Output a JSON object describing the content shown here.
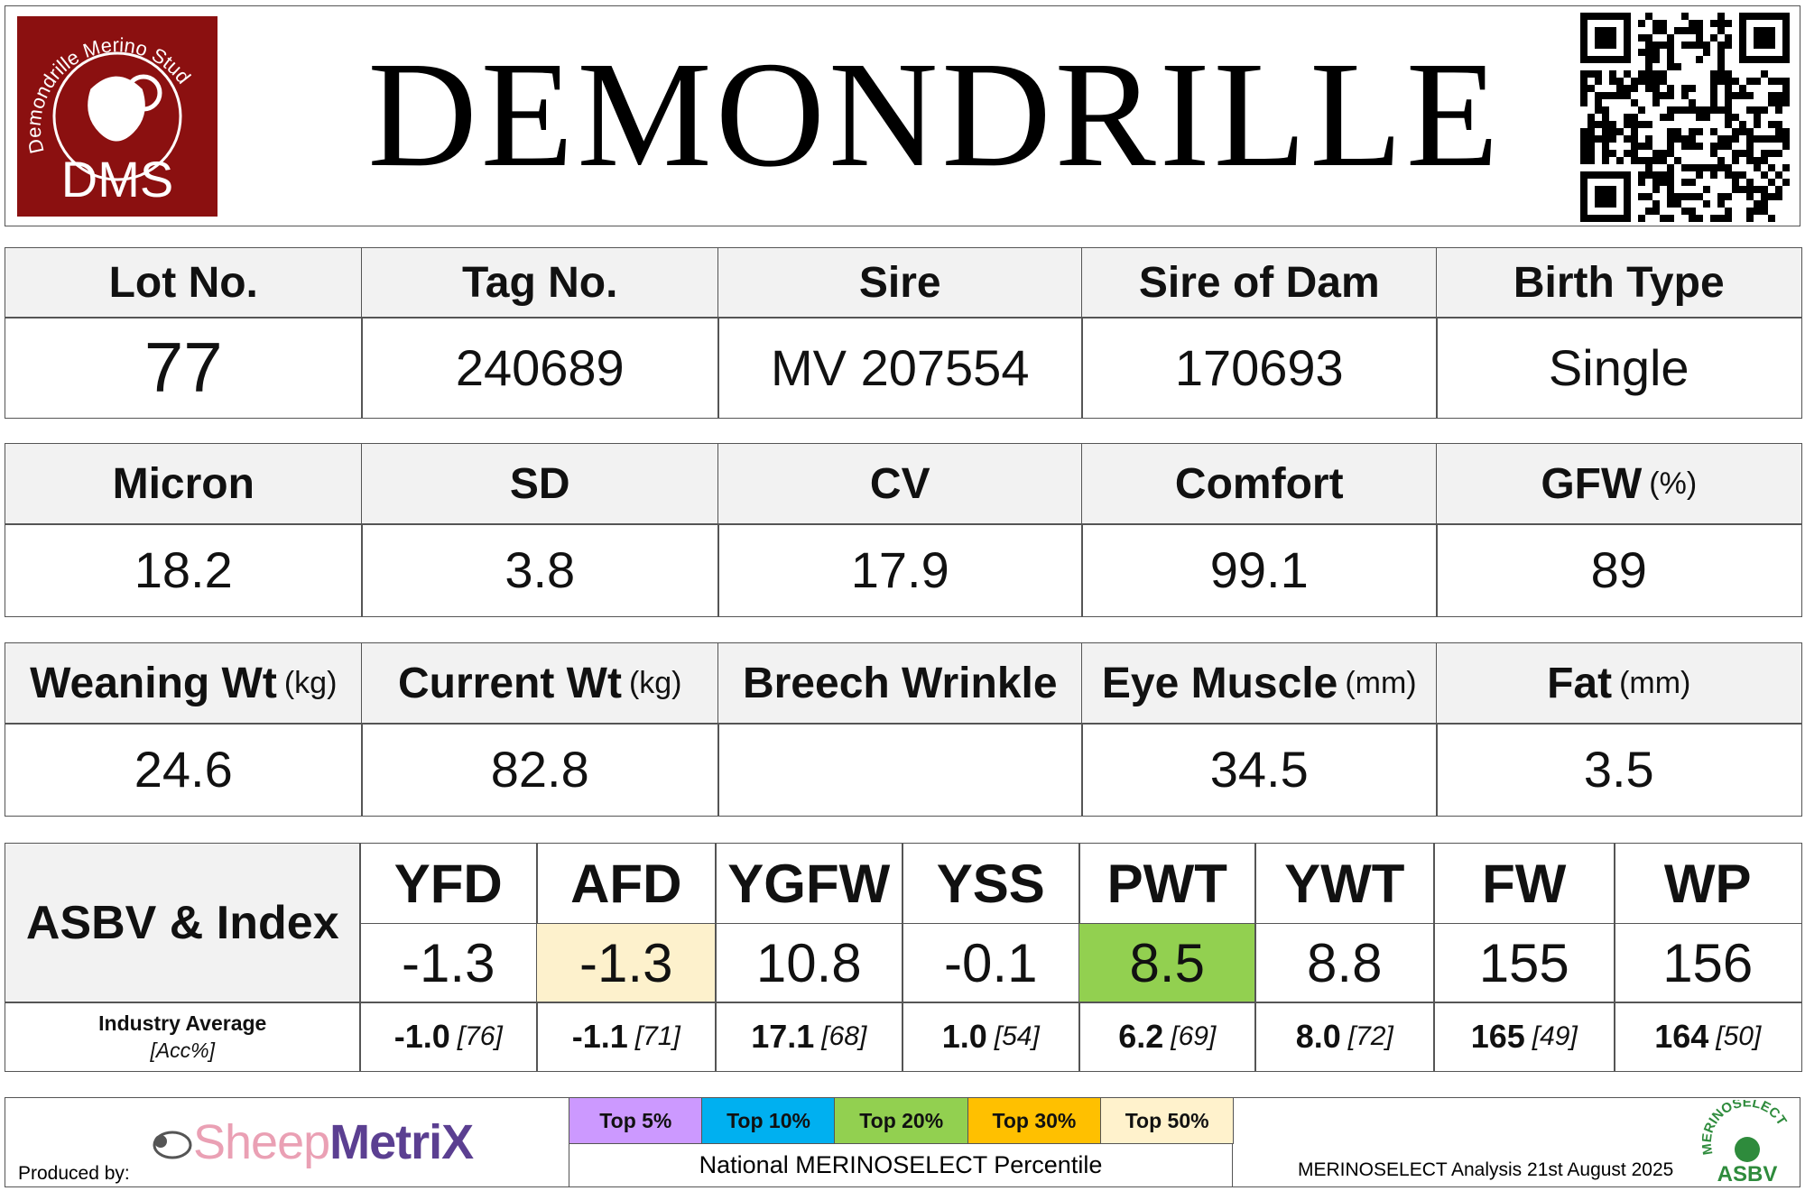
{
  "header": {
    "logo": {
      "arc_text": "Demondrille Merino Stud",
      "initials": "DMS"
    },
    "title": "DEMONDRILLE"
  },
  "info_tables": [
    {
      "columns": [
        {
          "label": "Lot No."
        },
        {
          "label": "Tag No."
        },
        {
          "label": "Sire"
        },
        {
          "label": "Sire of Dam"
        },
        {
          "label": "Birth Type"
        }
      ],
      "values": [
        "77",
        "240689",
        "MV 207554",
        "170693",
        "Single"
      ]
    },
    {
      "columns": [
        {
          "label": "Micron"
        },
        {
          "label": "SD"
        },
        {
          "label": "CV"
        },
        {
          "label": "Comfort"
        },
        {
          "label": "GFW",
          "unit": "(%)"
        }
      ],
      "values": [
        "18.2",
        "3.8",
        "17.9",
        "99.1",
        "89"
      ]
    },
    {
      "columns": [
        {
          "label": "Weaning Wt",
          "unit": "(kg)"
        },
        {
          "label": "Current Wt",
          "unit": "(kg)"
        },
        {
          "label": "Breech Wrinkle"
        },
        {
          "label": "Eye Muscle",
          "unit": "(mm)"
        },
        {
          "label": "Fat",
          "unit": "(mm)"
        }
      ],
      "values": [
        "24.6",
        "82.8",
        null,
        "34.5",
        "3.5"
      ]
    }
  ],
  "asbv": {
    "label": "ASBV & Index",
    "columns": [
      "YFD",
      "AFD",
      "YGFW",
      "YSS",
      "PWT",
      "YWT",
      "FW",
      "WP"
    ],
    "values": [
      "-1.3",
      "-1.3",
      "10.8",
      "-0.1",
      "8.5",
      "8.8",
      "155",
      "156"
    ],
    "highlights": [
      null,
      "#fdf1cc",
      null,
      null,
      "#92d050",
      null,
      null,
      null
    ],
    "average_label": "Industry Average",
    "accuracy_label": "[Acc%]",
    "averages": [
      {
        "value": "-1.0",
        "accuracy": "[76]"
      },
      {
        "value": "-1.1",
        "accuracy": "[71]"
      },
      {
        "value": "17.1",
        "accuracy": "[68]"
      },
      {
        "value": "1.0",
        "accuracy": "[54]"
      },
      {
        "value": "6.2",
        "accuracy": "[69]"
      },
      {
        "value": "8.0",
        "accuracy": "[72]"
      },
      {
        "value": "165",
        "accuracy": "[49]"
      },
      {
        "value": "164",
        "accuracy": "[50]"
      }
    ]
  },
  "footer": {
    "produced_by": "Produced by:",
    "brand": {
      "part1": "Sheep",
      "part2": "MetriX"
    },
    "percentile_legend": {
      "items": [
        {
          "label": "Top 5%",
          "color": "#cc99ff"
        },
        {
          "label": "Top 10%",
          "color": "#00b0f0"
        },
        {
          "label": "Top 20%",
          "color": "#92d050"
        },
        {
          "label": "Top 30%",
          "color": "#ffc000"
        },
        {
          "label": "Top 50%",
          "color": "#fff2cc"
        }
      ],
      "caption": "National MERINOSELECT Percentile"
    },
    "analysis": "MERINOSELECT Analysis 21st August 2025",
    "badge": {
      "arc": "MERINOSELECT",
      "text": "ASBV"
    }
  }
}
